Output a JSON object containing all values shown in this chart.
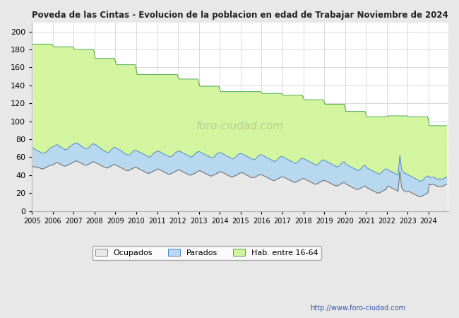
{
  "title": "Poveda de las Cintas - Evolucion de la poblacion en edad de Trabajar Noviembre de 2024",
  "ylim": [
    0,
    210
  ],
  "yticks": [
    0,
    20,
    40,
    60,
    80,
    100,
    120,
    140,
    160,
    180,
    200
  ],
  "watermark": "foro-ciudad.com",
  "url": "http://www.foro-ciudad.com",
  "bg_color": "#e8e8e8",
  "plot_bg_color": "#ffffff",
  "grid_color": "#cccccc",
  "hab_color": "#d4f5a0",
  "hab_line_color": "#44aa44",
  "parados_color": "#b8d8f0",
  "parados_line_color": "#4488cc",
  "ocupados_color": "#e8e8e8",
  "ocupados_line_color": "#666666",
  "hab_16_64": [
    186,
    186,
    186,
    186,
    186,
    186,
    186,
    186,
    186,
    186,
    186,
    186,
    183,
    183,
    183,
    183,
    183,
    183,
    183,
    183,
    183,
    183,
    183,
    183,
    180,
    180,
    180,
    180,
    180,
    180,
    180,
    180,
    180,
    180,
    180,
    180,
    170,
    170,
    170,
    170,
    170,
    170,
    170,
    170,
    170,
    170,
    170,
    170,
    163,
    163,
    163,
    163,
    163,
    163,
    163,
    163,
    163,
    163,
    163,
    163,
    152,
    152,
    152,
    152,
    152,
    152,
    152,
    152,
    152,
    152,
    152,
    152,
    152,
    152,
    152,
    152,
    152,
    152,
    152,
    152,
    152,
    152,
    152,
    152,
    147,
    147,
    147,
    147,
    147,
    147,
    147,
    147,
    147,
    147,
    147,
    147,
    139,
    139,
    139,
    139,
    139,
    139,
    139,
    139,
    139,
    139,
    139,
    139,
    133,
    133,
    133,
    133,
    133,
    133,
    133,
    133,
    133,
    133,
    133,
    133,
    133,
    133,
    133,
    133,
    133,
    133,
    133,
    133,
    133,
    133,
    133,
    133,
    131,
    131,
    131,
    131,
    131,
    131,
    131,
    131,
    131,
    131,
    131,
    131,
    129,
    129,
    129,
    129,
    129,
    129,
    129,
    129,
    129,
    129,
    129,
    129,
    124,
    124,
    124,
    124,
    124,
    124,
    124,
    124,
    124,
    124,
    124,
    124,
    119,
    119,
    119,
    119,
    119,
    119,
    119,
    119,
    119,
    119,
    119,
    119,
    111,
    111,
    111,
    111,
    111,
    111,
    111,
    111,
    111,
    111,
    111,
    111,
    105,
    105,
    105,
    105,
    105,
    105,
    105,
    105,
    105,
    105,
    105,
    105,
    106,
    106,
    106,
    106,
    106,
    106,
    106,
    106,
    106,
    106,
    106,
    106,
    105,
    105,
    105,
    105,
    105,
    105,
    105,
    105,
    105,
    105,
    105,
    105,
    95,
    95,
    95,
    95,
    95,
    95,
    95,
    95,
    95,
    95,
    95
  ],
  "parados_monthly": [
    70,
    69,
    68,
    67,
    66,
    65,
    64,
    65,
    66,
    68,
    70,
    71,
    72,
    73,
    74,
    73,
    71,
    70,
    69,
    68,
    69,
    71,
    73,
    74,
    75,
    76,
    75,
    74,
    72,
    71,
    70,
    69,
    70,
    72,
    74,
    75,
    74,
    73,
    71,
    70,
    68,
    67,
    66,
    65,
    66,
    68,
    70,
    71,
    70,
    69,
    68,
    67,
    65,
    64,
    63,
    62,
    63,
    65,
    67,
    68,
    67,
    66,
    65,
    64,
    63,
    62,
    61,
    60,
    61,
    63,
    65,
    66,
    67,
    66,
    65,
    64,
    63,
    62,
    61,
    60,
    61,
    63,
    65,
    66,
    67,
    66,
    65,
    64,
    63,
    62,
    61,
    60,
    61,
    63,
    65,
    66,
    66,
    65,
    64,
    63,
    62,
    61,
    60,
    59,
    60,
    62,
    64,
    65,
    65,
    64,
    63,
    62,
    61,
    60,
    59,
    58,
    59,
    61,
    63,
    64,
    64,
    63,
    62,
    61,
    60,
    59,
    58,
    57,
    58,
    60,
    62,
    63,
    62,
    61,
    60,
    59,
    58,
    57,
    56,
    55,
    56,
    58,
    60,
    61,
    60,
    59,
    58,
    57,
    56,
    55,
    54,
    53,
    54,
    56,
    58,
    59,
    58,
    57,
    56,
    55,
    54,
    53,
    52,
    51,
    52,
    54,
    56,
    57,
    56,
    55,
    54,
    53,
    52,
    51,
    50,
    49,
    50,
    52,
    54,
    55,
    52,
    51,
    50,
    49,
    48,
    47,
    46,
    45,
    46,
    48,
    50,
    51,
    48,
    47,
    46,
    45,
    44,
    43,
    42,
    41,
    42,
    44,
    46,
    47,
    46,
    45,
    44,
    43,
    42,
    41,
    40,
    62,
    46,
    43,
    42,
    41,
    40,
    39,
    38,
    37,
    36,
    35,
    34,
    33,
    34,
    36,
    38,
    39,
    38,
    37,
    38,
    37,
    36,
    35,
    36,
    35,
    36,
    37,
    38
  ],
  "ocupados_monthly": [
    50,
    49,
    49,
    48,
    48,
    47,
    47,
    48,
    49,
    50,
    51,
    51,
    52,
    53,
    54,
    53,
    52,
    51,
    50,
    50,
    51,
    52,
    53,
    54,
    55,
    56,
    55,
    54,
    53,
    52,
    51,
    51,
    52,
    53,
    54,
    55,
    54,
    53,
    52,
    51,
    50,
    49,
    48,
    48,
    49,
    50,
    51,
    52,
    51,
    50,
    49,
    48,
    47,
    46,
    45,
    45,
    46,
    47,
    48,
    49,
    48,
    47,
    46,
    45,
    44,
    43,
    42,
    42,
    43,
    44,
    45,
    46,
    47,
    46,
    45,
    44,
    43,
    42,
    41,
    41,
    42,
    43,
    44,
    45,
    46,
    45,
    44,
    43,
    42,
    41,
    40,
    40,
    41,
    42,
    43,
    44,
    45,
    44,
    43,
    42,
    41,
    40,
    39,
    39,
    40,
    41,
    42,
    43,
    44,
    43,
    42,
    41,
    40,
    39,
    38,
    38,
    39,
    40,
    41,
    42,
    43,
    42,
    41,
    40,
    39,
    38,
    37,
    37,
    38,
    39,
    40,
    41,
    40,
    39,
    38,
    37,
    36,
    35,
    34,
    34,
    35,
    36,
    37,
    38,
    38,
    37,
    36,
    35,
    34,
    33,
    32,
    32,
    33,
    34,
    35,
    36,
    36,
    35,
    34,
    33,
    32,
    31,
    30,
    30,
    31,
    32,
    33,
    34,
    34,
    33,
    32,
    31,
    30,
    29,
    28,
    28,
    29,
    30,
    31,
    32,
    30,
    29,
    28,
    27,
    26,
    25,
    24,
    24,
    25,
    26,
    27,
    28,
    26,
    25,
    24,
    23,
    22,
    21,
    20,
    20,
    21,
    22,
    23,
    24,
    28,
    27,
    26,
    25,
    24,
    23,
    22,
    44,
    26,
    23,
    22,
    21,
    22,
    21,
    20,
    19,
    18,
    17,
    16,
    16,
    17,
    18,
    19,
    20,
    30,
    29,
    30,
    29,
    28,
    27,
    28,
    27,
    28,
    29,
    30
  ]
}
